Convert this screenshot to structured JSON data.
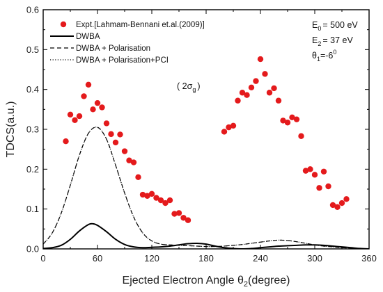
{
  "chart_data": {
    "type": "scatter",
    "xlabel": "Ejected Electron Angle θ",
    "xlabel_sub": "2",
    "xlabel_suffix": "(degree)",
    "ylabel": "TDCS(a.u.)",
    "xlim": [
      0,
      360
    ],
    "ylim": [
      0,
      0.6
    ],
    "xticks": [
      0,
      60,
      120,
      180,
      240,
      300,
      360
    ],
    "yticks": [
      0.0,
      0.1,
      0.2,
      0.3,
      0.4,
      0.5,
      0.6
    ],
    "ytick_labels": [
      "0.0",
      "0.1",
      "0.2",
      "0.3",
      "0.4",
      "0.5",
      "0.6"
    ],
    "legend_position": "top-left",
    "annotations": {
      "e0": {
        "main": "E",
        "sub": "0",
        "rest": "= 500 eV"
      },
      "e2": {
        "main": "E",
        "sub": "2",
        "rest": "= 37 eV"
      },
      "theta": {
        "main": "θ",
        "sub": "1",
        "rest": "=-6",
        "sup": "0"
      },
      "orbital": {
        "pre": "( 2σ",
        "sub": "g",
        "post": ")"
      }
    },
    "series": [
      {
        "name": "Expt.[Lahmam-Bennani et.al.(2009)]",
        "kind": "points",
        "color": "#e41a1c",
        "x": [
          25,
          30,
          35,
          40,
          45,
          50,
          55,
          60,
          65,
          70,
          75,
          80,
          85,
          90,
          95,
          100,
          105,
          110,
          115,
          120,
          125,
          130,
          135,
          140,
          145,
          150,
          155,
          160,
          200,
          205,
          210,
          215,
          220,
          225,
          230,
          235,
          240,
          245,
          250,
          255,
          260,
          265,
          270,
          275,
          280,
          285,
          290,
          295,
          300,
          305,
          310,
          315,
          320,
          325,
          330,
          335
        ],
        "y": [
          0.27,
          0.337,
          0.323,
          0.333,
          0.383,
          0.412,
          0.35,
          0.366,
          0.355,
          0.315,
          0.288,
          0.267,
          0.287,
          0.245,
          0.222,
          0.217,
          0.18,
          0.136,
          0.133,
          0.138,
          0.128,
          0.122,
          0.115,
          0.122,
          0.088,
          0.09,
          0.078,
          0.072,
          0.294,
          0.305,
          0.309,
          0.372,
          0.392,
          0.386,
          0.405,
          0.421,
          0.476,
          0.439,
          0.392,
          0.403,
          0.372,
          0.322,
          0.317,
          0.33,
          0.325,
          0.283,
          0.196,
          0.2,
          0.186,
          0.153,
          0.194,
          0.157,
          0.11,
          0.105,
          0.115,
          0.125
        ]
      },
      {
        "name": "DWBA",
        "kind": "line",
        "dash": "solid",
        "color": "#000000",
        "x": [
          0,
          10,
          20,
          30,
          40,
          50,
          55,
          60,
          70,
          80,
          90,
          100,
          110,
          120,
          130,
          140,
          150,
          160,
          170,
          180,
          190,
          200,
          210,
          220,
          230,
          240,
          250,
          260,
          270,
          280,
          290,
          300,
          310,
          320,
          330,
          340,
          350,
          360
        ],
        "y": [
          0.001,
          0.003,
          0.009,
          0.024,
          0.045,
          0.061,
          0.063,
          0.059,
          0.043,
          0.024,
          0.011,
          0.005,
          0.003,
          0.004,
          0.005,
          0.007,
          0.01,
          0.013,
          0.014,
          0.012,
          0.007,
          0.003,
          0.001,
          0.0,
          0.001,
          0.003,
          0.005,
          0.007,
          0.008,
          0.009,
          0.01,
          0.01,
          0.009,
          0.007,
          0.005,
          0.003,
          0.001,
          0.0
        ]
      },
      {
        "name": "DWBA + Polarisation",
        "kind": "line",
        "dash": "dashed",
        "color": "#000000",
        "x": [
          0,
          10,
          20,
          30,
          40,
          50,
          60,
          70,
          80,
          90,
          100,
          110,
          120,
          130,
          140,
          150,
          160,
          170,
          180,
          190,
          200,
          210,
          220,
          230,
          240,
          250,
          260,
          270,
          280,
          290,
          300,
          310,
          320,
          330,
          340,
          350,
          360
        ],
        "y": [
          0.012,
          0.04,
          0.09,
          0.16,
          0.235,
          0.29,
          0.305,
          0.275,
          0.21,
          0.14,
          0.08,
          0.04,
          0.02,
          0.012,
          0.01,
          0.009,
          0.008,
          0.007,
          0.006,
          0.006,
          0.007,
          0.009,
          0.011,
          0.014,
          0.017,
          0.02,
          0.022,
          0.021,
          0.018,
          0.014,
          0.01,
          0.007,
          0.005,
          0.003,
          0.002,
          0.001,
          0.0
        ]
      },
      {
        "name": "DWBA + Polarisation+PCI",
        "kind": "line",
        "dash": "dotted",
        "color": "#000000",
        "x": [
          0,
          10,
          20,
          30,
          40,
          50,
          60,
          70,
          80,
          90,
          100,
          110,
          120,
          130,
          140,
          150,
          160,
          170,
          180,
          190,
          200,
          210,
          220,
          230,
          240,
          250,
          260,
          270,
          280,
          290,
          300,
          310,
          320,
          330,
          340,
          350,
          360
        ],
        "y": [
          0.012,
          0.04,
          0.09,
          0.16,
          0.235,
          0.29,
          0.305,
          0.275,
          0.21,
          0.14,
          0.08,
          0.04,
          0.02,
          0.012,
          0.01,
          0.009,
          0.008,
          0.007,
          0.006,
          0.006,
          0.007,
          0.009,
          0.011,
          0.014,
          0.017,
          0.02,
          0.022,
          0.021,
          0.018,
          0.014,
          0.01,
          0.007,
          0.005,
          0.003,
          0.002,
          0.001,
          0.0
        ]
      }
    ]
  }
}
